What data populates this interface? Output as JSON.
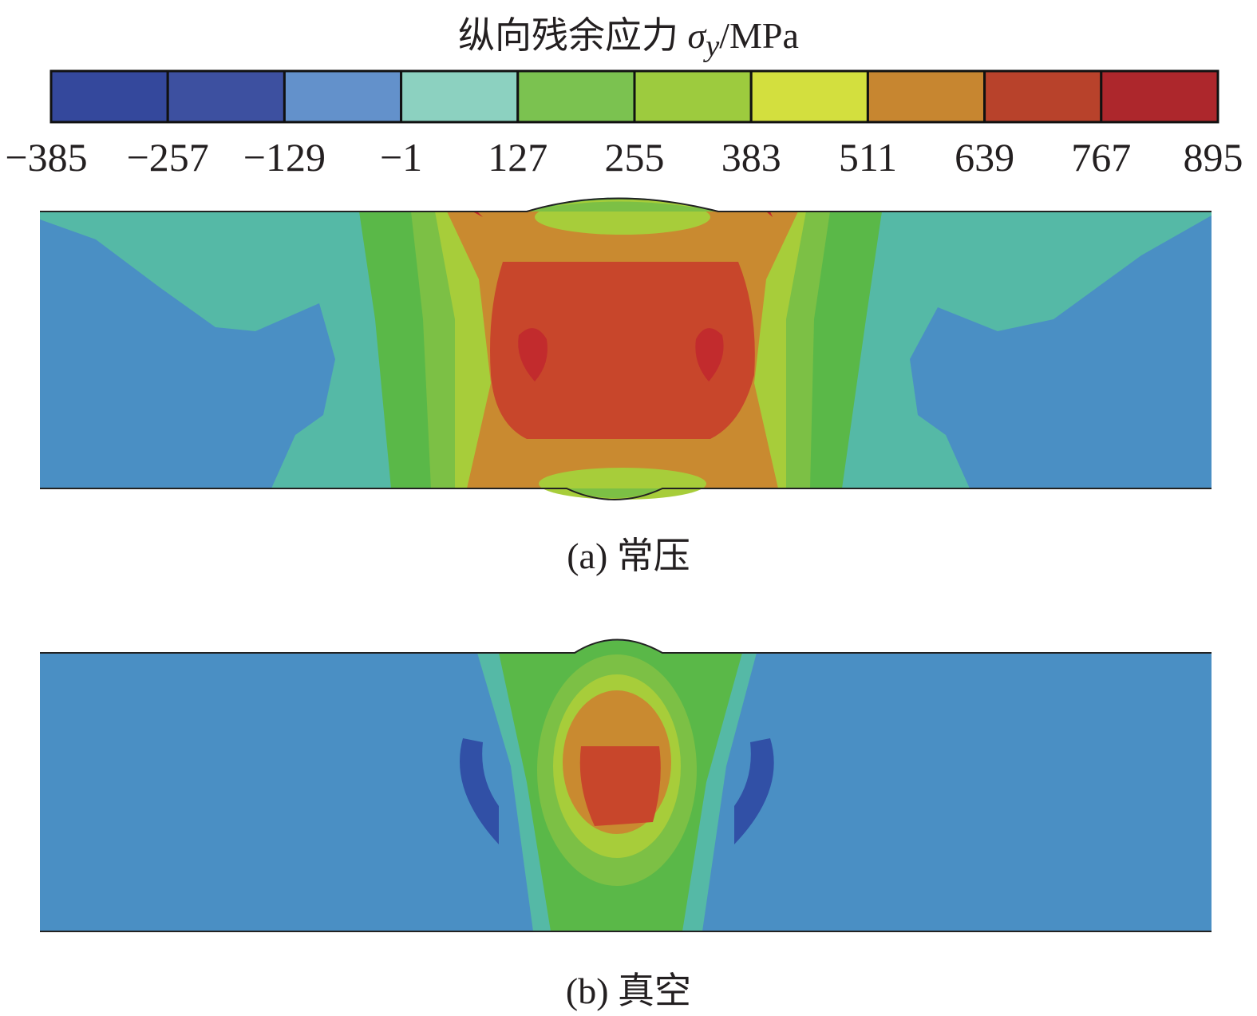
{
  "colorbar": {
    "title_prefix": "纵向残余应力 ",
    "title_symbol": "σ",
    "title_subscript": "y",
    "title_unit": "/MPa",
    "ticks": [
      "−385",
      "−257",
      "−129",
      "−1",
      "127",
      "255",
      "383",
      "511",
      "639",
      "767",
      "895"
    ],
    "colors": [
      "#34489c",
      "#3d50a0",
      "#6391cb",
      "#8cd1c0",
      "#7bc250",
      "#9dcb3e",
      "#d3df3e",
      "#c78630",
      "#b8422b",
      "#ad272c"
    ]
  },
  "panels": [
    {
      "caption": "(a) 常压"
    },
    {
      "caption": "(b) 真空"
    }
  ]
}
